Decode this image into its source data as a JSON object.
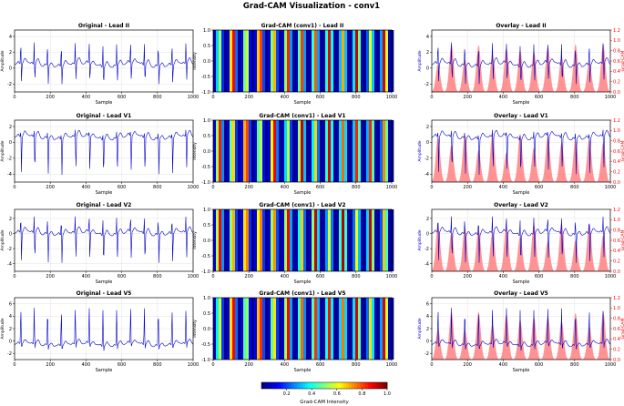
{
  "figure": {
    "title": "Grad-CAM Visualization - conv1"
  },
  "colors": {
    "ecg_line": "#0000cc",
    "overlay_fill": "#ff8080",
    "overlay_axis": "#ff0000",
    "grid": "#e0e0e0",
    "frame": "#000000"
  },
  "colorbar": {
    "label": "Grad-CAM Intensity",
    "ticks": [
      "0.2",
      "0.4",
      "0.6",
      "0.8",
      "1.0"
    ],
    "tick_values": [
      0.2,
      0.4,
      0.6,
      0.8,
      1.0
    ],
    "range": [
      0.0,
      1.0
    ],
    "colormap": "jet"
  },
  "chart_data": [
    {
      "type": "line",
      "lead": "II",
      "column": "original",
      "title": "Original - Lead II",
      "xlabel": "Sample",
      "ylabel": "Amplitude",
      "xlim": [
        0,
        1000
      ],
      "ylim": [
        -3,
        4.8
      ],
      "xticks": [
        "0",
        "200",
        "400",
        "600",
        "800",
        "1000"
      ],
      "xtick_values": [
        0,
        200,
        400,
        600,
        800,
        1000
      ],
      "yticks": [
        "4",
        "2",
        "0",
        "-2"
      ],
      "ytick_values": [
        4,
        2,
        0,
        -2
      ],
      "series": [
        {
          "beats": [
            35,
            110,
            185,
            262,
            340,
            418,
            495,
            572,
            650,
            727,
            805,
            882,
            960
          ],
          "peak": 3.3,
          "trough": -2.4,
          "baseline": 0.4
        }
      ]
    },
    {
      "type": "heatmap",
      "lead": "II",
      "column": "gradcam",
      "title": "Grad-CAM (conv1) - Lead II",
      "xlabel": "Sample",
      "ylabel": "Intensity",
      "xlim": [
        0,
        1000
      ],
      "ylim": [
        -1,
        1
      ],
      "xticks": [
        "0",
        "200",
        "400",
        "600",
        "800",
        "1000"
      ],
      "xtick_values": [
        0,
        200,
        400,
        600,
        800,
        1000
      ],
      "yticks": [
        "1.0",
        "0.5",
        "0.0",
        "-0.5",
        "-1.0"
      ],
      "ytick_values": [
        1,
        0.5,
        0,
        -0.5,
        -1
      ]
    },
    {
      "type": "area",
      "lead": "II",
      "column": "overlay",
      "title": "Overlay - Lead II",
      "xlabel": "Sample",
      "ylabel": "Amplitude",
      "ylabel_right": "Grad-CAM",
      "xlim": [
        0,
        1000
      ],
      "ylim": [
        -3,
        4.8
      ],
      "ylim_right": [
        0,
        1.2
      ],
      "xticks": [
        "0",
        "200",
        "400",
        "600",
        "800",
        "1000"
      ],
      "xtick_values": [
        0,
        200,
        400,
        600,
        800,
        1000
      ],
      "yticks": [
        "4",
        "2",
        "0",
        "-2"
      ],
      "ytick_values": [
        4,
        2,
        0,
        -2
      ],
      "yticks_right": [
        "1.2",
        "1.0",
        "0.8",
        "0.6",
        "0.4",
        "0.2",
        "0.0"
      ],
      "ytick_values_right": [
        1.2,
        1.0,
        0.8,
        0.6,
        0.4,
        0.2,
        0.0
      ]
    },
    {
      "type": "line",
      "lead": "V1",
      "column": "original",
      "title": "Original - Lead V1",
      "xlabel": "Sample",
      "ylabel": "Amplitude",
      "xlim": [
        0,
        1000
      ],
      "ylim": [
        -5,
        2.8
      ],
      "xticks": [
        "0",
        "200",
        "400",
        "600",
        "800",
        "1000"
      ],
      "xtick_values": [
        0,
        200,
        400,
        600,
        800,
        1000
      ],
      "yticks": [
        "2",
        "0",
        "-2",
        "-4"
      ],
      "ytick_values": [
        2,
        0,
        -2,
        -4
      ],
      "series": [
        {
          "beats": [
            35,
            110,
            185,
            262,
            340,
            418,
            495,
            572,
            650,
            727,
            805,
            882,
            960
          ],
          "peak": 1.6,
          "trough": -4.5,
          "baseline": 0.6
        }
      ]
    },
    {
      "type": "heatmap",
      "lead": "V1",
      "column": "gradcam",
      "title": "Grad-CAM (conv1) - Lead V1",
      "xlabel": "Sample",
      "ylabel": "Intensity",
      "xlim": [
        0,
        1000
      ],
      "ylim": [
        -1,
        1
      ],
      "xticks": [
        "0",
        "200",
        "400",
        "600",
        "800",
        "1000"
      ],
      "xtick_values": [
        0,
        200,
        400,
        600,
        800,
        1000
      ],
      "yticks": [
        "1.0",
        "0.5",
        "0.0",
        "-0.5",
        "-1.0"
      ],
      "ytick_values": [
        1,
        0.5,
        0,
        -0.5,
        -1
      ]
    },
    {
      "type": "area",
      "lead": "V1",
      "column": "overlay",
      "title": "Overlay - Lead V1",
      "xlabel": "Sample",
      "ylabel": "Amplitude",
      "ylabel_right": "Grad-CAM",
      "xlim": [
        0,
        1000
      ],
      "ylim": [
        -5,
        2.8
      ],
      "ylim_right": [
        0,
        1.2
      ],
      "xticks": [
        "0",
        "200",
        "400",
        "600",
        "800",
        "1000"
      ],
      "xtick_values": [
        0,
        200,
        400,
        600,
        800,
        1000
      ],
      "yticks": [
        "2",
        "0",
        "-2",
        "-4"
      ],
      "ytick_values": [
        2,
        0,
        -2,
        -4
      ],
      "yticks_right": [
        "1.2",
        "1.0",
        "0.8",
        "0.6",
        "0.4",
        "0.2",
        "0.0"
      ],
      "ytick_values_right": [
        1.2,
        1.0,
        0.8,
        0.6,
        0.4,
        0.2,
        0.0
      ]
    },
    {
      "type": "line",
      "lead": "V2",
      "column": "original",
      "title": "Original - Lead V2",
      "xlabel": "Sample",
      "ylabel": "Amplitude",
      "xlim": [
        0,
        1000
      ],
      "ylim": [
        -5,
        3.2
      ],
      "xticks": [
        "0",
        "200",
        "400",
        "600",
        "800",
        "1000"
      ],
      "xtick_values": [
        0,
        200,
        400,
        600,
        800,
        1000
      ],
      "yticks": [
        "2",
        "0",
        "-2",
        "-4"
      ],
      "ytick_values": [
        2,
        0,
        -2,
        -4
      ],
      "series": [
        {
          "beats": [
            35,
            110,
            185,
            262,
            340,
            418,
            495,
            572,
            650,
            727,
            805,
            882,
            960
          ],
          "peak": 2.4,
          "trough": -4.4,
          "baseline": 0.0
        }
      ]
    },
    {
      "type": "heatmap",
      "lead": "V2",
      "column": "gradcam",
      "title": "Grad-CAM (conv1) - Lead V2",
      "xlabel": "Sample",
      "ylabel": "Intensity",
      "xlim": [
        0,
        1000
      ],
      "ylim": [
        -1,
        1
      ],
      "xticks": [
        "0",
        "200",
        "400",
        "600",
        "800",
        "1000"
      ],
      "xtick_values": [
        0,
        200,
        400,
        600,
        800,
        1000
      ],
      "yticks": [
        "1.0",
        "0.5",
        "0.0",
        "-0.5",
        "-1.0"
      ],
      "ytick_values": [
        1,
        0.5,
        0,
        -0.5,
        -1
      ]
    },
    {
      "type": "area",
      "lead": "V2",
      "column": "overlay",
      "title": "Overlay - Lead V2",
      "xlabel": "Sample",
      "ylabel": "Amplitude",
      "ylabel_right": "Grad-CAM",
      "xlim": [
        0,
        1000
      ],
      "ylim": [
        -5,
        3.2
      ],
      "ylim_right": [
        0,
        1.2
      ],
      "xticks": [
        "0",
        "200",
        "400",
        "600",
        "800",
        "1000"
      ],
      "xtick_values": [
        0,
        200,
        400,
        600,
        800,
        1000
      ],
      "yticks": [
        "2",
        "0",
        "-2",
        "-4"
      ],
      "ytick_values": [
        2,
        0,
        -2,
        -4
      ],
      "yticks_right": [
        "1.2",
        "1.0",
        "0.8",
        "0.6",
        "0.4",
        "0.2",
        "0.0"
      ],
      "ytick_values_right": [
        1.2,
        1.0,
        0.8,
        0.6,
        0.4,
        0.2,
        0.0
      ]
    },
    {
      "type": "line",
      "lead": "V5",
      "column": "original",
      "title": "Original - Lead V5",
      "xlabel": "Sample",
      "ylabel": "Amplitude",
      "xlim": [
        0,
        1000
      ],
      "ylim": [
        -3,
        7
      ],
      "xticks": [
        "0",
        "200",
        "400",
        "600",
        "800",
        "1000"
      ],
      "xtick_values": [
        0,
        200,
        400,
        600,
        800,
        1000
      ],
      "yticks": [
        "6",
        "4",
        "2",
        "0",
        "-2"
      ],
      "ytick_values": [
        6,
        4,
        2,
        0,
        -2
      ],
      "series": [
        {
          "beats": [
            35,
            110,
            185,
            262,
            340,
            418,
            495,
            572,
            650,
            727,
            805,
            882,
            960
          ],
          "peak": 5.4,
          "trough": -1.8,
          "baseline": -0.6
        }
      ]
    },
    {
      "type": "heatmap",
      "lead": "V5",
      "column": "gradcam",
      "title": "Grad-CAM (conv1) - Lead V5",
      "xlabel": "Sample",
      "ylabel": "Intensity",
      "xlim": [
        0,
        1000
      ],
      "ylim": [
        -1,
        1
      ],
      "xticks": [
        "0",
        "200",
        "400",
        "600",
        "800",
        "1000"
      ],
      "xtick_values": [
        0,
        200,
        400,
        600,
        800,
        1000
      ],
      "yticks": [
        "1.0",
        "0.5",
        "0.0",
        "-0.5",
        "-1.0"
      ],
      "ytick_values": [
        1,
        0.5,
        0,
        -0.5,
        -1
      ]
    },
    {
      "type": "area",
      "lead": "V5",
      "column": "overlay",
      "title": "Overlay - Lead V5",
      "xlabel": "Sample",
      "ylabel": "Amplitude",
      "ylabel_right": "Grad-CAM",
      "xlim": [
        0,
        1000
      ],
      "ylim": [
        -3,
        7
      ],
      "ylim_right": [
        0,
        1.2
      ],
      "xticks": [
        "0",
        "200",
        "400",
        "600",
        "800",
        "1000"
      ],
      "xtick_values": [
        0,
        200,
        400,
        600,
        800,
        1000
      ],
      "yticks": [
        "6",
        "4",
        "2",
        "0",
        "-2"
      ],
      "ytick_values": [
        6,
        4,
        2,
        0,
        -2
      ],
      "yticks_right": [
        "1.2",
        "1.0",
        "0.8",
        "0.6",
        "0.4",
        "0.2",
        "0.0"
      ],
      "ytick_values_right": [
        1.2,
        1.0,
        0.8,
        0.6,
        0.4,
        0.2,
        0.0
      ]
    }
  ]
}
